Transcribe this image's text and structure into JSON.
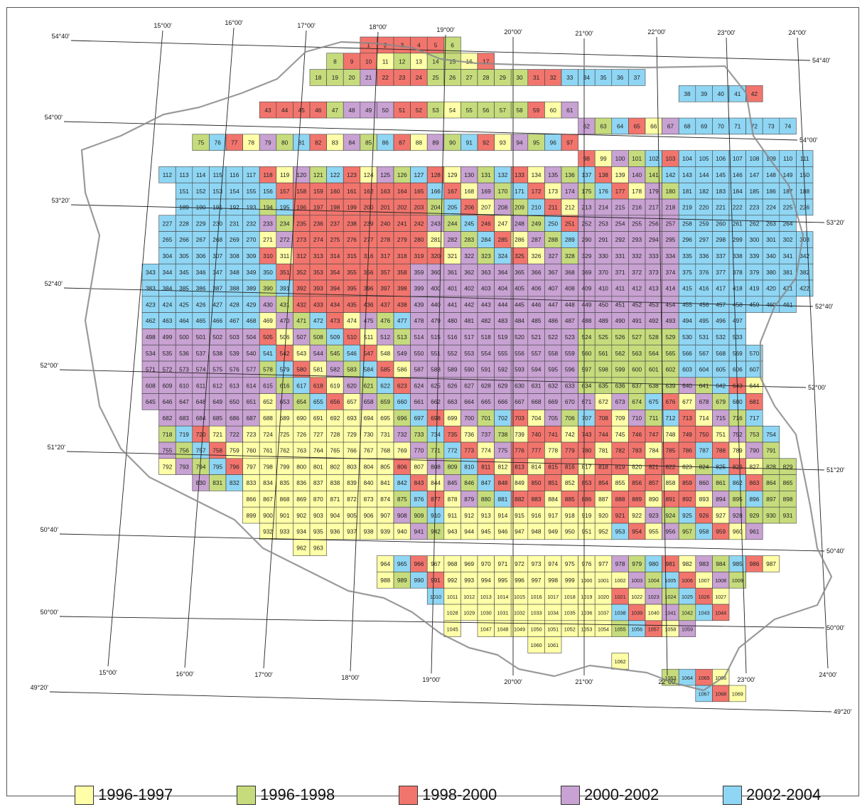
{
  "map": {
    "lon_labels": [
      "15°00'",
      "16°00'",
      "17°00'",
      "18°00'",
      "19°00'",
      "20°00'",
      "21°00'",
      "22°00'",
      "23°00'",
      "24°00'"
    ],
    "lat_labels": [
      "54°40'",
      "54°00'",
      "53°20'",
      "52°40'",
      "52°00'",
      "51°20'",
      "50°40'",
      "50°00'",
      "49°20'"
    ]
  },
  "legend": [
    {
      "label": "1996-1997",
      "color": "#ffffa8"
    },
    {
      "label": "1996-1998",
      "color": "#c6dc7c"
    },
    {
      "label": "1998-2000",
      "color": "#f2756d"
    },
    {
      "label": "2000-2002",
      "color": "#c8a2d2"
    },
    {
      "label": "2002-2004",
      "color": "#8fd6f4"
    }
  ],
  "sheets": {
    "rows": [
      {
        "first": 1,
        "last": 6,
        "col": 3
      },
      {
        "first": 8,
        "last": 17,
        "col": 1
      },
      {
        "first": 18,
        "last": 37,
        "col": 0
      },
      {
        "first": 38,
        "last": 42,
        "col": 22
      },
      {
        "first": 43,
        "last": 61,
        "col": -3
      },
      {
        "first": 62,
        "last": 74,
        "col": 16
      },
      {
        "first": 75,
        "last": 97,
        "col": -7
      },
      {
        "first": 98,
        "last": 111,
        "col": 16
      },
      {
        "first": 112,
        "last": 150,
        "col": -9
      },
      {
        "first": 151,
        "last": 188,
        "col": -8
      },
      {
        "first": 189,
        "last": 226,
        "col": -8
      },
      {
        "first": 227,
        "last": 264,
        "col": -9
      },
      {
        "first": 265,
        "last": 303,
        "col": -9
      },
      {
        "first": 304,
        "last": 342,
        "col": -9
      },
      {
        "first": 343,
        "last": 382,
        "col": -10
      },
      {
        "first": 383,
        "last": 422,
        "col": -10
      },
      {
        "first": 423,
        "last": 461,
        "col": -10
      },
      {
        "first": 462,
        "last": 497,
        "col": -10
      },
      {
        "first": 498,
        "last": 533,
        "col": -10
      },
      {
        "first": 534,
        "last": 570,
        "col": -10
      },
      {
        "first": 571,
        "last": 607,
        "col": -10
      },
      {
        "first": 608,
        "last": 644,
        "col": -10
      },
      {
        "first": 645,
        "last": 681,
        "col": -10
      },
      {
        "first": 682,
        "last": 717,
        "col": -9
      },
      {
        "first": 718,
        "last": 754,
        "col": -9
      },
      {
        "first": 755,
        "last": 791,
        "col": -9
      },
      {
        "first": 792,
        "last": 829,
        "col": -9
      },
      {
        "first": 830,
        "last": 865,
        "col": -7
      },
      {
        "first": 866,
        "last": 898,
        "col": -4
      },
      {
        "first": 899,
        "last": 931,
        "col": -4
      },
      {
        "first": 932,
        "last": 961,
        "col": -3
      },
      {
        "first": 962,
        "last": 963,
        "col": -1
      },
      {
        "first": 964,
        "last": 987,
        "col": 4
      },
      {
        "first": 988,
        "last": 1009,
        "col": 4
      },
      {
        "first": 1010,
        "last": 1027,
        "col": 7
      },
      {
        "first": 1028,
        "last": 1044,
        "col": 8
      },
      {
        "first": 1045,
        "last": 1059,
        "col": 8
      },
      {
        "first": 1060,
        "last": 1061,
        "col": 13
      },
      {
        "first": 1062,
        "last": 1062,
        "col": 18
      },
      {
        "first": 1063,
        "last": 1066,
        "col": 21
      },
      {
        "first": 1067,
        "last": 1069,
        "col": 23
      }
    ],
    "skip": [
      7,
      1046
    ],
    "colors": [
      "#f2756d",
      "#f2756d",
      "#f2756d",
      "#f2756d",
      "#f2756d",
      "#c6dc7c",
      "#c6dc7c",
      "#c6dc7c",
      "#f2756d",
      "#f2756d",
      "#ffffa8",
      "#c6dc7c",
      "#ffffa8",
      "#c6dc7c",
      "#c6dc7c",
      "#ffffa8",
      "#f2756d",
      "#c6dc7c",
      "#c6dc7c",
      "#c6dc7c",
      "#c8a2d2",
      "#f2756d",
      "#f2756d",
      "#f2756d",
      "#c6dc7c",
      "#c6dc7c",
      "#c6dc7c",
      "#c6dc7c",
      "#c6dc7c",
      "#c6dc7c",
      "#f2756d",
      "#f2756d",
      "#8fd6f4",
      "#8fd6f4",
      "#8fd6f4",
      "#8fd6f4",
      "#8fd6f4",
      "#8fd6f4",
      "#8fd6f4",
      "#8fd6f4",
      "#8fd6f4",
      "#f2756d",
      "#f2756d",
      "#f2756d",
      "#f2756d",
      "#f2756d",
      "#c6dc7c",
      "#c8a2d2",
      "#c8a2d2",
      "#c8a2d2",
      "#f2756d",
      "#f2756d",
      "#c6dc7c",
      "#ffffa8",
      "#c6dc7c",
      "#c6dc7c",
      "#c6dc7c",
      "#c6dc7c",
      "#f2756d"
    ]
  }
}
